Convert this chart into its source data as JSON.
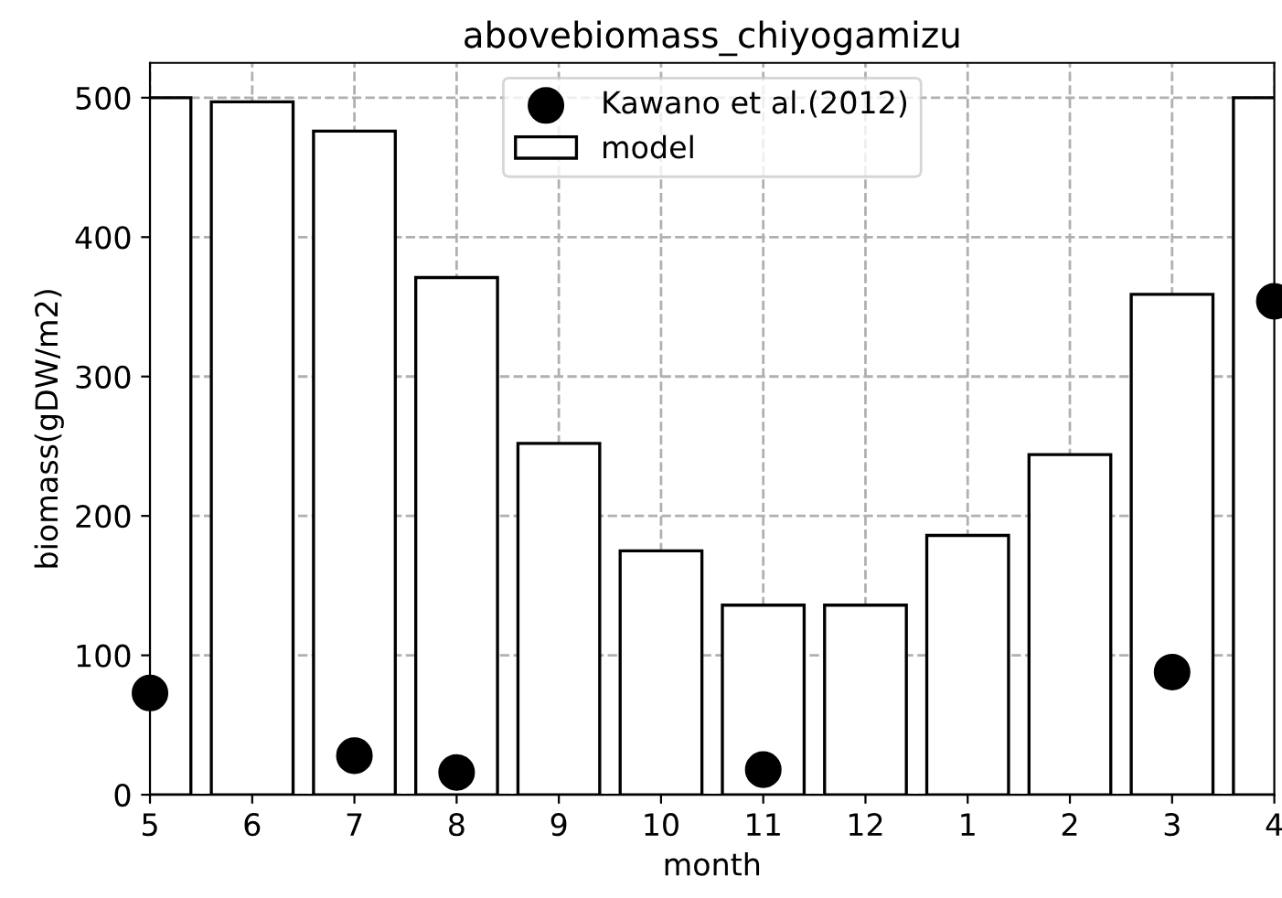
{
  "chart_data": {
    "type": "bar",
    "title": "abovebiomass_chiyogamizu",
    "xlabel": "month",
    "ylabel": "biomass(gDW/m2)",
    "categories": [
      "5",
      "6",
      "7",
      "8",
      "9",
      "10",
      "11",
      "12",
      "1",
      "2",
      "3",
      "4"
    ],
    "ylim": [
      0,
      525
    ],
    "yticks": [
      0,
      100,
      200,
      300,
      400,
      500
    ],
    "series": [
      {
        "name": "Kawano et al.(2012)",
        "type": "scatter",
        "color": "#000000",
        "marker": "circle",
        "values": [
          73,
          null,
          28,
          16,
          null,
          null,
          18,
          null,
          null,
          null,
          88,
          354
        ]
      },
      {
        "name": "model",
        "color": "#ffffff",
        "values": [
          500,
          497,
          476,
          371,
          252,
          175,
          136,
          136,
          186,
          244,
          359,
          500
        ]
      }
    ],
    "grid": true,
    "legend": "top"
  }
}
